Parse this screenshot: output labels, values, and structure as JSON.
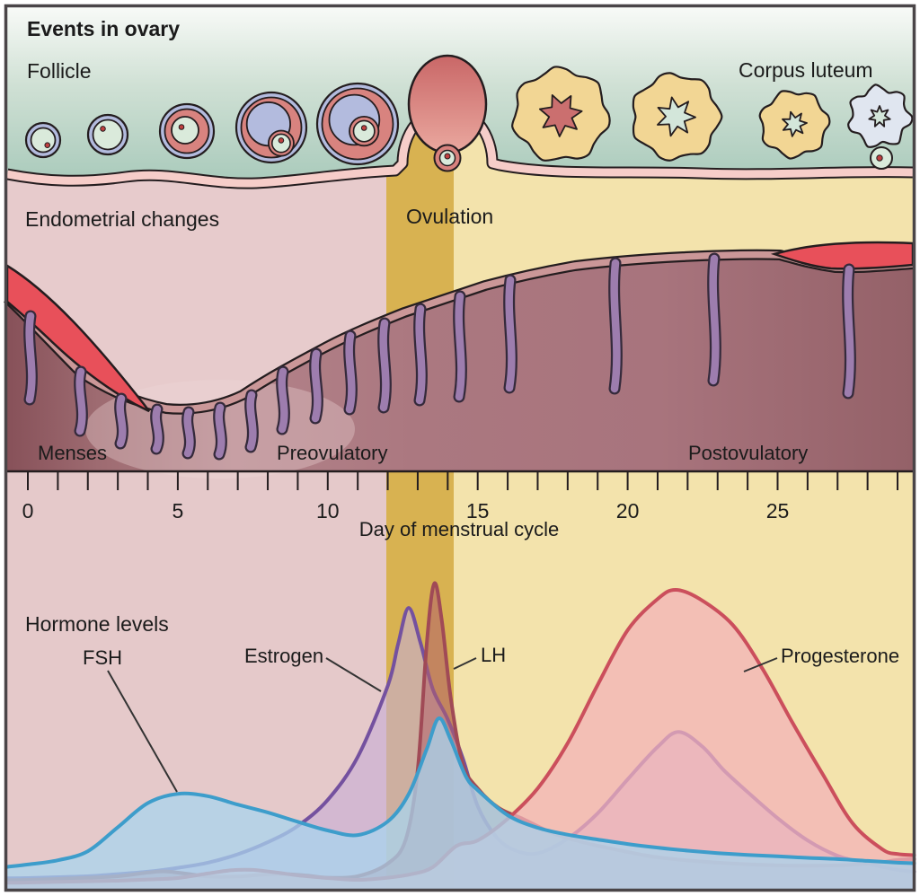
{
  "panels": {
    "ovary": {
      "title": "Events in ovary",
      "follicle_label": "Follicle",
      "corpus_luteum_label": "Corpus luteum"
    },
    "endometrium": {
      "title": "Endometrial changes",
      "ovulation_label": "Ovulation",
      "phase_menses": "Menses",
      "phase_preovulatory": "Preovulatory",
      "phase_postovulatory": "Postovulatory"
    },
    "axis": {
      "label": "Day of menstrual cycle"
    },
    "hormones": {
      "title": "Hormone levels",
      "fsh_label": "FSH",
      "estrogen_label": "Estrogen",
      "lh_label": "LH",
      "progesterone_label": "Progesterone"
    }
  },
  "colors": {
    "band_pink": "#e7cbcc",
    "band_gold": "#d8b251",
    "band_yellow": "#f3e3ac",
    "fsh_stroke": "#3d9dcb",
    "fsh_fill": "#a8d4ee",
    "estrogen_stroke": "#74519f",
    "estrogen_fill": "#c6aed6",
    "lh_stroke": "#a04a56",
    "lh_fill": "#b2606c",
    "progesterone_stroke": "#cb4f5c",
    "progesterone_fill": "#f3b3b8",
    "menstrual_blood": "#e8505a",
    "gland_purple": "#9d7dae"
  },
  "chart_data": {
    "type": "area",
    "title": "Hormone levels",
    "xlabel": "Day of menstrual cycle",
    "ylabel": "relative hormone level (unlabeled axis, 0-100)",
    "axis": {
      "day_min": 0,
      "day_max": 29,
      "labeled_days": [
        0,
        5,
        10,
        15,
        20,
        25
      ]
    },
    "regions": {
      "ovulation_band_days": [
        12,
        14.2
      ],
      "menses_phase": "days 0-4",
      "preovulatory_phase": "days 4-12",
      "postovulatory_phase": "days 14-29"
    },
    "legend_position": "labels with pointer lines inside plot",
    "series": [
      {
        "name": "Estrogen",
        "points": [
          [
            -0.7,
            2
          ],
          [
            0,
            2.1
          ],
          [
            1,
            2.4
          ],
          [
            2,
            2.7
          ],
          [
            3,
            3.4
          ],
          [
            4,
            4.2
          ],
          [
            5,
            5.5
          ],
          [
            6,
            7.2
          ],
          [
            7,
            10
          ],
          [
            8,
            14
          ],
          [
            9,
            19.4
          ],
          [
            10,
            28.1
          ],
          [
            11,
            42.4
          ],
          [
            12,
            66
          ],
          [
            12.35,
            80
          ],
          [
            12.7,
            91.9
          ],
          [
            13.1,
            80
          ],
          [
            13.5,
            65
          ],
          [
            14,
            54.9
          ],
          [
            14.5,
            42
          ],
          [
            15,
            26
          ],
          [
            15.6,
            16
          ],
          [
            16.2,
            11.5
          ],
          [
            17,
            10.3
          ],
          [
            18,
            15.2
          ],
          [
            19,
            23.6
          ],
          [
            20,
            34.9
          ],
          [
            21,
            45.7
          ],
          [
            21.7,
            50.7
          ],
          [
            22.5,
            45.7
          ],
          [
            23.2,
            38
          ],
          [
            24,
            30.7
          ],
          [
            25,
            22
          ],
          [
            26,
            14.6
          ],
          [
            27,
            9.5
          ],
          [
            28,
            6.9
          ],
          [
            29,
            4.8
          ],
          [
            29.55,
            4.2
          ]
        ]
      },
      {
        "name": "LH",
        "points": [
          [
            -0.7,
            1.4
          ],
          [
            0,
            1.5
          ],
          [
            1,
            1.8
          ],
          [
            2,
            2.2
          ],
          [
            3,
            2.7
          ],
          [
            4,
            3.9
          ],
          [
            4.6,
            4.3
          ],
          [
            5.4,
            3.4
          ],
          [
            6,
            2.6
          ],
          [
            7,
            2.6
          ],
          [
            7.8,
            3.2
          ],
          [
            8.6,
            3.4
          ],
          [
            9.4,
            2.8
          ],
          [
            10,
            2.2
          ],
          [
            11,
            2.7
          ],
          [
            12,
            6.9
          ],
          [
            12.6,
            14.9
          ],
          [
            13,
            37.9
          ],
          [
            13.3,
            80
          ],
          [
            13.55,
            100
          ],
          [
            13.8,
            88
          ],
          [
            14.1,
            62
          ],
          [
            14.5,
            40
          ],
          [
            15,
            31.9
          ],
          [
            15.7,
            25.4
          ],
          [
            16.5,
            21.8
          ],
          [
            17.5,
            17
          ],
          [
            18.5,
            14
          ],
          [
            19.5,
            11.8
          ],
          [
            21,
            9
          ],
          [
            23,
            7.2
          ],
          [
            25,
            6.3
          ],
          [
            27,
            6.3
          ],
          [
            28.3,
            7.2
          ],
          [
            29,
            8.1
          ],
          [
            29.55,
            8.4
          ]
        ]
      },
      {
        "name": "Progesterone",
        "points": [
          [
            -0.7,
            0.5
          ],
          [
            0,
            0.6
          ],
          [
            1,
            0.8
          ],
          [
            2,
            1
          ],
          [
            3,
            1.2
          ],
          [
            4,
            1.6
          ],
          [
            5,
            2.1
          ],
          [
            6,
            3.6
          ],
          [
            6.8,
            4.7
          ],
          [
            7.5,
            4.8
          ],
          [
            8.3,
            3.9
          ],
          [
            9,
            3
          ],
          [
            10,
            2.1
          ],
          [
            11,
            1.5
          ],
          [
            12,
            2.2
          ],
          [
            12.8,
            3.4
          ],
          [
            13.5,
            5.7
          ],
          [
            14.3,
            12.8
          ],
          [
            15,
            14.6
          ],
          [
            16,
            21.8
          ],
          [
            17,
            31.9
          ],
          [
            18,
            46.9
          ],
          [
            19,
            66.3
          ],
          [
            20,
            84.5
          ],
          [
            21,
            94.9
          ],
          [
            21.6,
            97.9
          ],
          [
            22.4,
            94.9
          ],
          [
            23.5,
            86.3
          ],
          [
            24.5,
            71.6
          ],
          [
            25.5,
            53.7
          ],
          [
            26.5,
            36.7
          ],
          [
            27.5,
            20.3
          ],
          [
            28.5,
            11.6
          ],
          [
            29,
            10.1
          ],
          [
            29.55,
            9.7
          ]
        ]
      },
      {
        "name": "FSH",
        "points": [
          [
            -0.7,
            5.8
          ],
          [
            0,
            6.6
          ],
          [
            1,
            8
          ],
          [
            2,
            11
          ],
          [
            3,
            19
          ],
          [
            4,
            27
          ],
          [
            5,
            30.1
          ],
          [
            6,
            29.3
          ],
          [
            7,
            26.5
          ],
          [
            8,
            23.9
          ],
          [
            9,
            20.8
          ],
          [
            10,
            17.9
          ],
          [
            11,
            16.4
          ],
          [
            12,
            20.9
          ],
          [
            12.7,
            30
          ],
          [
            13.3,
            45
          ],
          [
            13.7,
            55.2
          ],
          [
            14.1,
            48
          ],
          [
            14.6,
            36
          ],
          [
            15,
            31.3
          ],
          [
            16,
            23
          ],
          [
            17,
            18.8
          ],
          [
            18,
            16.5
          ],
          [
            19,
            14.9
          ],
          [
            20,
            13.4
          ],
          [
            21,
            12.2
          ],
          [
            22,
            11.2
          ],
          [
            23,
            10.4
          ],
          [
            24,
            9.8
          ],
          [
            25,
            9.3
          ],
          [
            26,
            8.8
          ],
          [
            27,
            8.4
          ],
          [
            28,
            7.8
          ],
          [
            29,
            7.2
          ],
          [
            29.55,
            7
          ]
        ]
      }
    ]
  }
}
